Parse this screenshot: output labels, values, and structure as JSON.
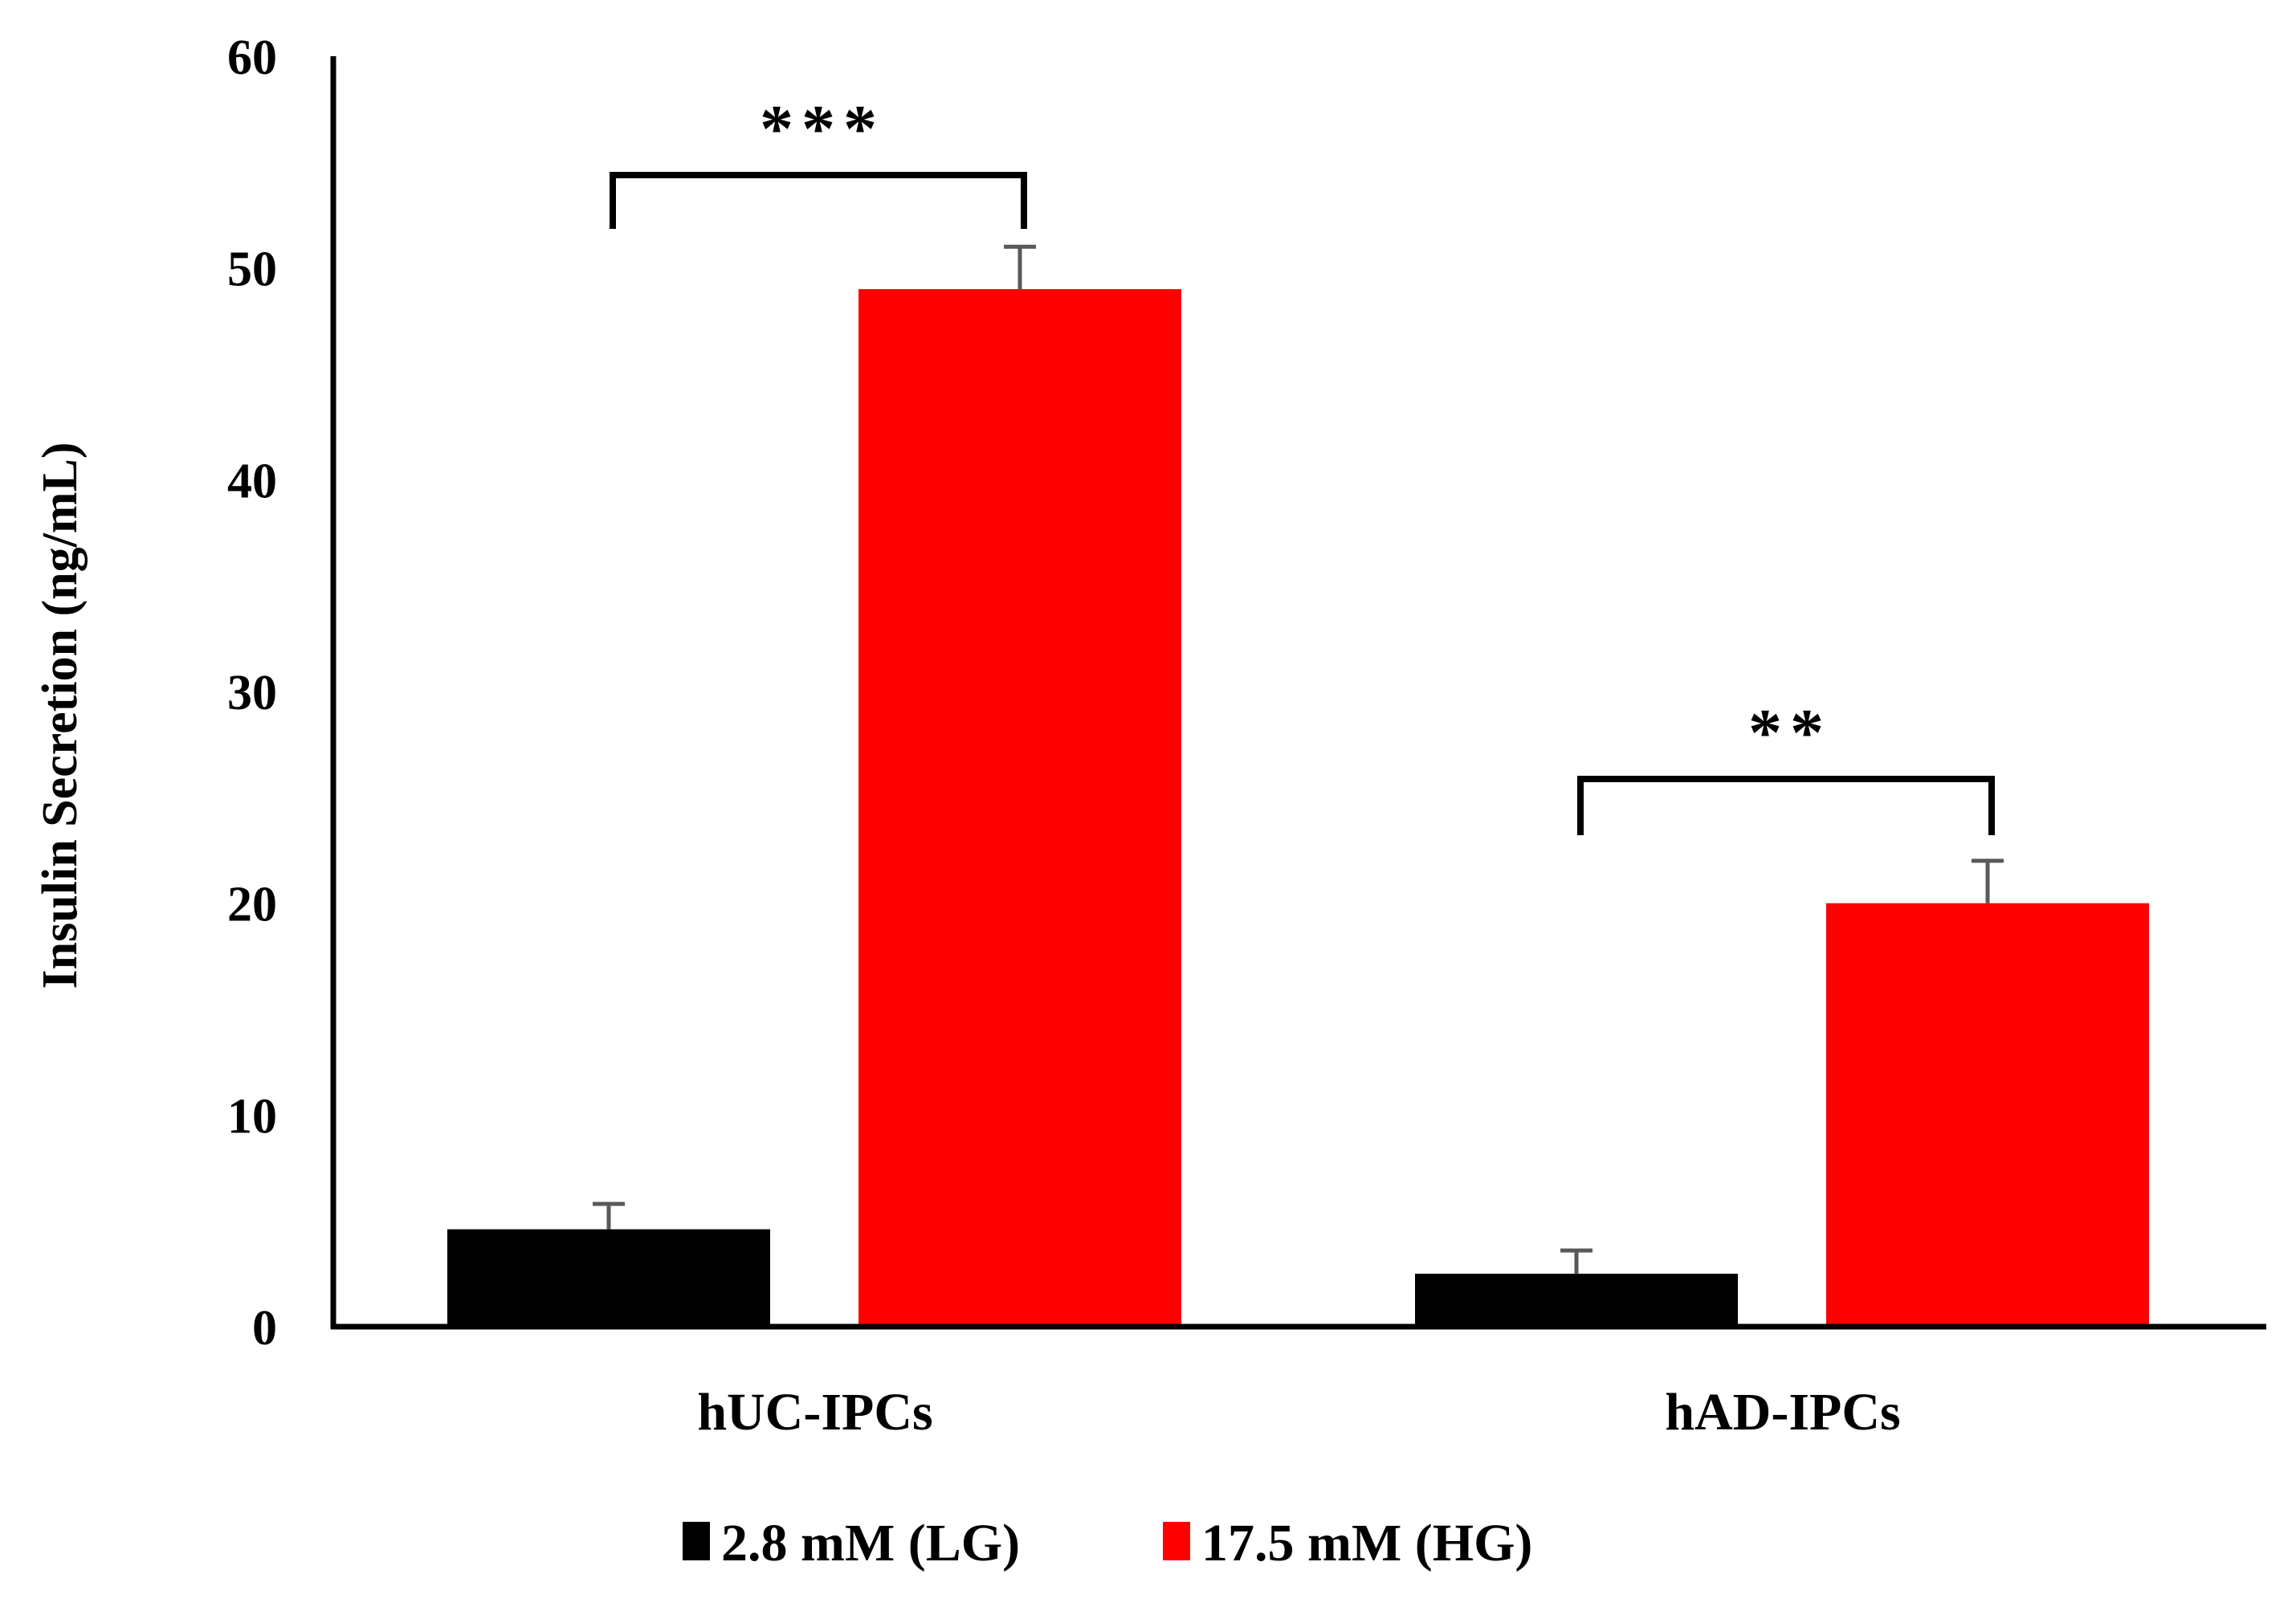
{
  "chart_data": {
    "type": "bar",
    "categories": [
      "hUC-IPCs",
      "hAD-IPCs"
    ],
    "series": [
      {
        "name": "2.8 mM (LG)",
        "color": "#000000",
        "values": [
          4.6,
          2.5
        ],
        "errors": [
          1.2,
          1.1
        ]
      },
      {
        "name": "17.5 mM (HG)",
        "color": "#ff0000",
        "values": [
          49.0,
          20.0
        ],
        "errors": [
          2.0,
          2.0
        ]
      }
    ],
    "ylabel": "Insulin  Secretion (ng/mL)",
    "ylim": [
      0,
      60
    ],
    "yticks": [
      0,
      10,
      20,
      30,
      40,
      50,
      60
    ],
    "grid": false,
    "legend": "bottom",
    "error_bar_color": "#595959",
    "annotations": [
      {
        "category": "hUC-IPCs",
        "label": "***"
      },
      {
        "category": "hAD-IPCs",
        "label": "**"
      }
    ]
  }
}
